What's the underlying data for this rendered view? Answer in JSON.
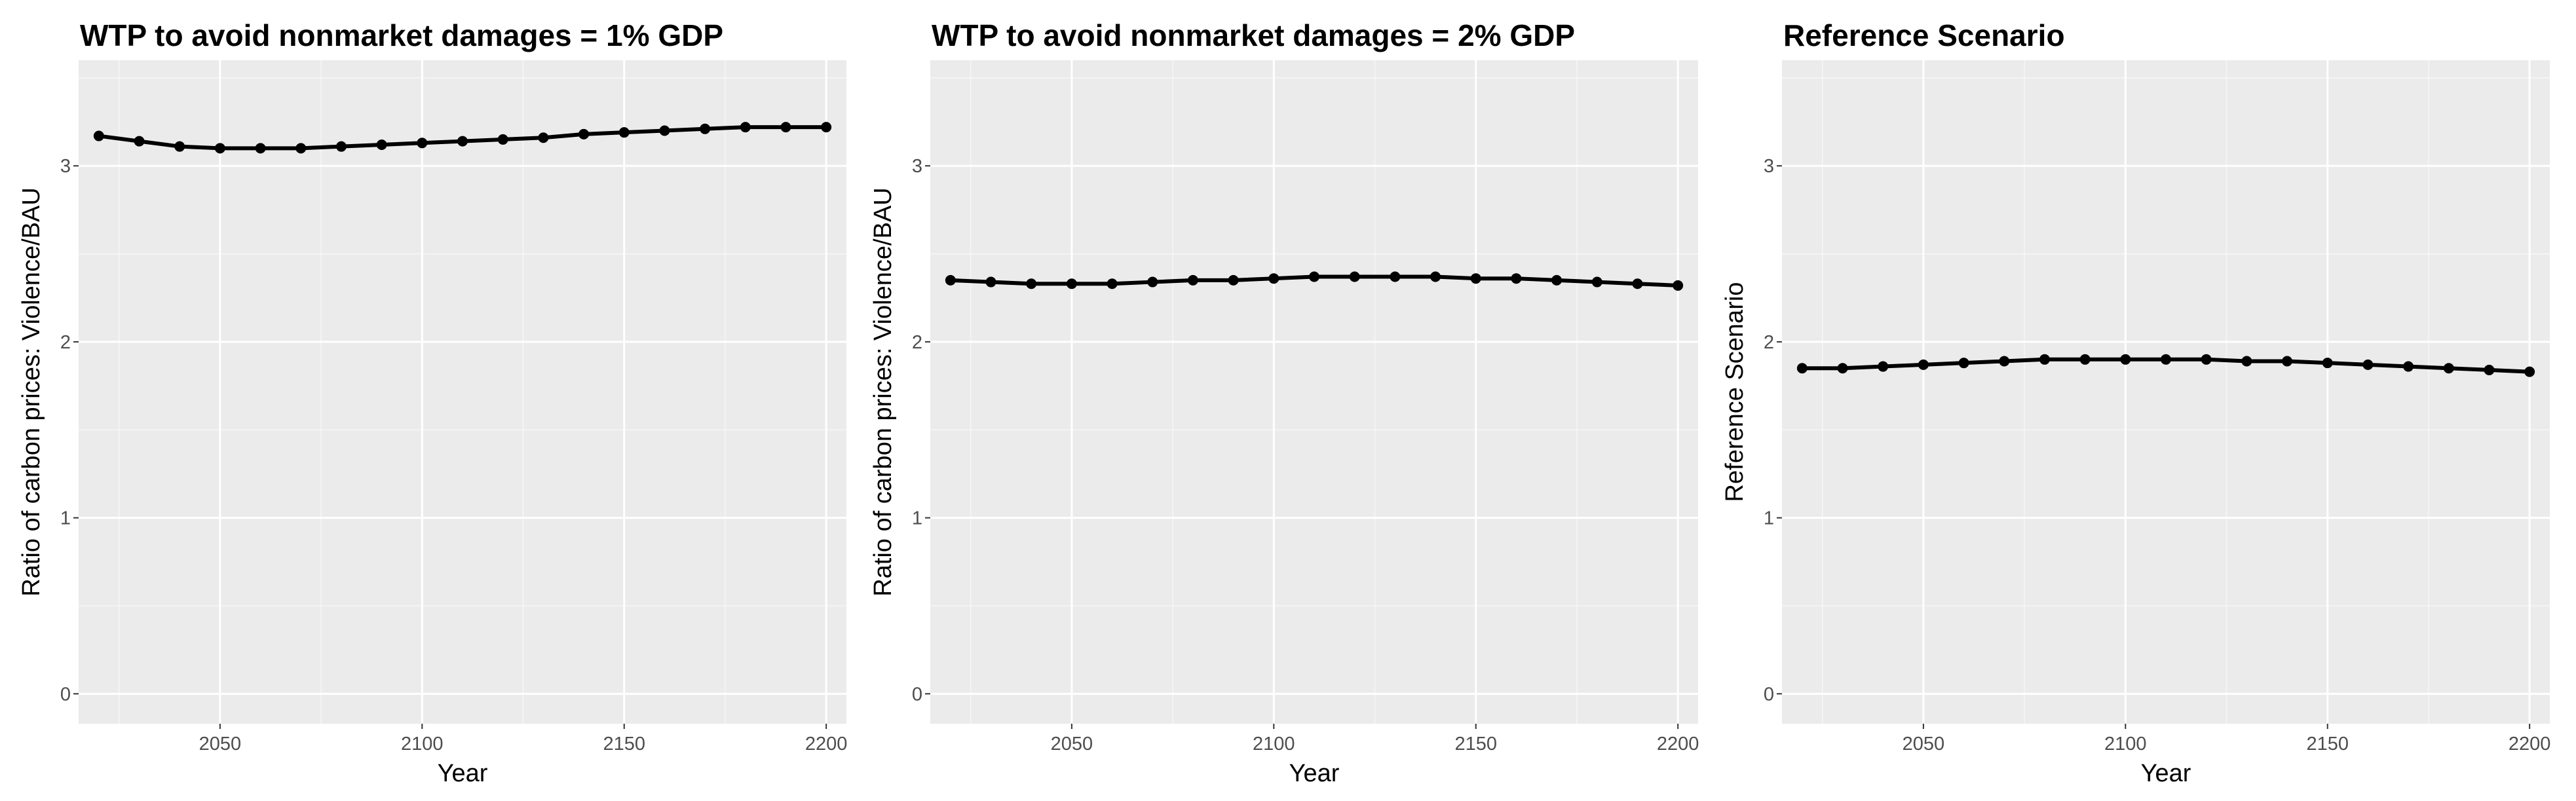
{
  "chart_data": [
    {
      "type": "line",
      "title": "WTP to avoid nonmarket damages = 1% GDP",
      "xlabel": "Year",
      "ylabel": "Ratio of carbon prices: Violence/BAU",
      "xlim": [
        2015,
        2205
      ],
      "ylim": [
        -0.17,
        3.6
      ],
      "x_ticks": [
        2050,
        2100,
        2150,
        2200
      ],
      "y_ticks": [
        0,
        1,
        2,
        3
      ],
      "grid": true,
      "legend": "none",
      "series": [
        {
          "x": [
            2020,
            2030,
            2040,
            2050,
            2060,
            2070,
            2080,
            2090,
            2100,
            2110,
            2120,
            2130,
            2140,
            2150,
            2160,
            2170,
            2180,
            2190,
            2200
          ],
          "values": [
            3.17,
            3.14,
            3.11,
            3.1,
            3.1,
            3.1,
            3.11,
            3.12,
            3.13,
            3.14,
            3.15,
            3.16,
            3.18,
            3.19,
            3.2,
            3.21,
            3.22,
            3.22,
            3.22
          ]
        }
      ]
    },
    {
      "type": "line",
      "title": "WTP to avoid nonmarket damages = 2% GDP",
      "xlabel": "Year",
      "ylabel": "Ratio of carbon prices: Violence/BAU",
      "xlim": [
        2015,
        2205
      ],
      "ylim": [
        -0.17,
        3.6
      ],
      "x_ticks": [
        2050,
        2100,
        2150,
        2200
      ],
      "y_ticks": [
        0,
        1,
        2,
        3
      ],
      "grid": true,
      "legend": "none",
      "series": [
        {
          "x": [
            2020,
            2030,
            2040,
            2050,
            2060,
            2070,
            2080,
            2090,
            2100,
            2110,
            2120,
            2130,
            2140,
            2150,
            2160,
            2170,
            2180,
            2190,
            2200
          ],
          "values": [
            2.35,
            2.34,
            2.33,
            2.33,
            2.33,
            2.34,
            2.35,
            2.35,
            2.36,
            2.37,
            2.37,
            2.37,
            2.37,
            2.36,
            2.36,
            2.35,
            2.34,
            2.33,
            2.32
          ]
        }
      ]
    },
    {
      "type": "line",
      "title": "Reference Scenario",
      "xlabel": "Year",
      "ylabel": "Reference Scenario",
      "xlim": [
        2015,
        2205
      ],
      "ylim": [
        -0.17,
        3.6
      ],
      "x_ticks": [
        2050,
        2100,
        2150,
        2200
      ],
      "y_ticks": [
        0,
        1,
        2,
        3
      ],
      "grid": true,
      "legend": "none",
      "series": [
        {
          "x": [
            2020,
            2030,
            2040,
            2050,
            2060,
            2070,
            2080,
            2090,
            2100,
            2110,
            2120,
            2130,
            2140,
            2150,
            2160,
            2170,
            2180,
            2190,
            2200
          ],
          "values": [
            1.85,
            1.85,
            1.86,
            1.87,
            1.88,
            1.89,
            1.9,
            1.9,
            1.9,
            1.9,
            1.9,
            1.89,
            1.89,
            1.88,
            1.87,
            1.86,
            1.85,
            1.84,
            1.83
          ]
        }
      ]
    }
  ],
  "colors": {
    "panel_background": "#ebebeb",
    "grid_major": "#ffffff",
    "line": "#000000",
    "tick_text": "#4d4d4d"
  }
}
